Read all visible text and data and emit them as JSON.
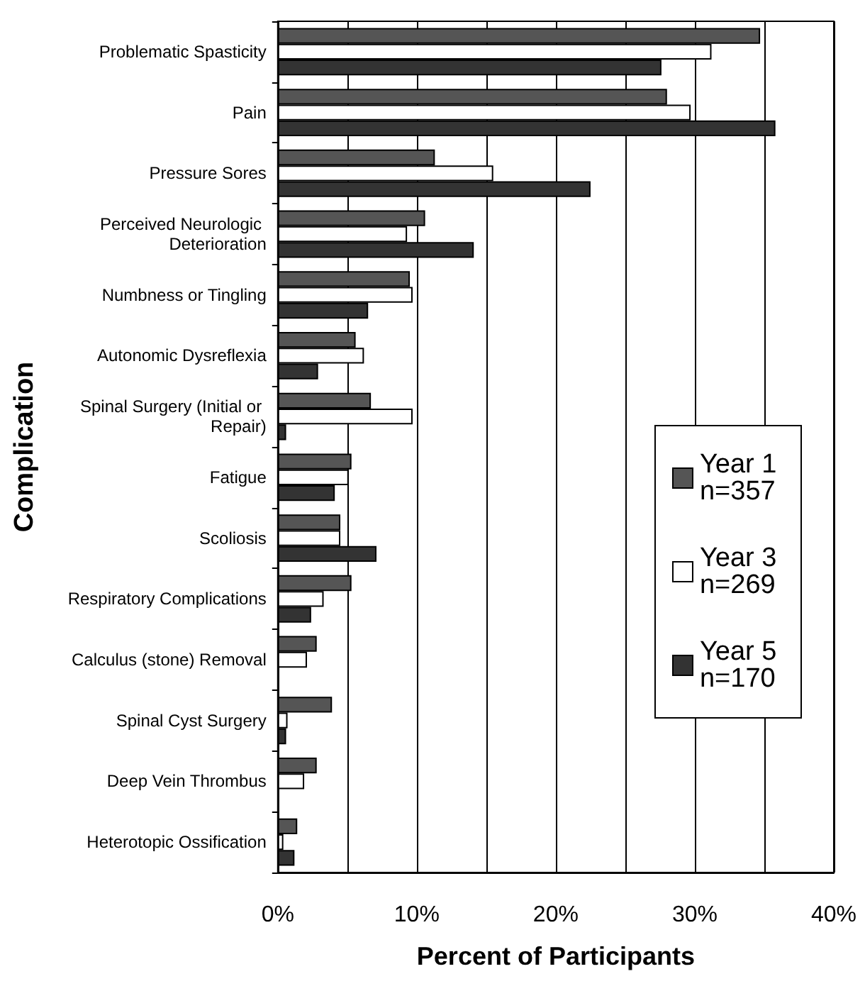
{
  "chart_data": {
    "type": "bar",
    "orientation": "horizontal",
    "xlabel": "Percent of Participants",
    "ylabel": "Complication",
    "categories": [
      "Problematic Spasticity",
      "Pain",
      "Pressure Sores",
      "Perceived Neurologic Deterioration",
      "Numbness or Tingling",
      "Autonomic Dysreflexia",
      "Spinal Surgery (Initial or Repair)",
      "Fatigue",
      "Scoliosis",
      "Respiratory Complications",
      "Calculus (stone) Removal",
      "Spinal Cyst Surgery",
      "Deep Vein Thrombus",
      "Heterotopic Ossification"
    ],
    "series": [
      {
        "name": "Year 1 n=357",
        "color": "#555555",
        "values": [
          34.7,
          28.0,
          11.3,
          10.6,
          9.5,
          5.6,
          6.7,
          5.3,
          4.5,
          5.3,
          2.8,
          3.9,
          2.8,
          1.4
        ]
      },
      {
        "name": "Year 3 n=269",
        "color": "#ffffff",
        "values": [
          31.2,
          29.7,
          15.5,
          9.3,
          9.7,
          6.2,
          9.7,
          5.1,
          4.5,
          3.3,
          2.1,
          0.7,
          1.9,
          0.4
        ]
      },
      {
        "name": "Year 5 n=170",
        "color": "#333333",
        "values": [
          27.6,
          35.8,
          22.5,
          14.1,
          6.5,
          2.9,
          0.6,
          4.1,
          7.1,
          2.4,
          0,
          0.6,
          0,
          1.2
        ]
      }
    ],
    "xlim": [
      0,
      40
    ],
    "xticks": [
      {
        "value": 0,
        "label": "0%"
      },
      {
        "value": 5,
        "label": null
      },
      {
        "value": 10,
        "label": "10%"
      },
      {
        "value": 15,
        "label": null
      },
      {
        "value": 20,
        "label": "20%"
      },
      {
        "value": 25,
        "label": null
      },
      {
        "value": 30,
        "label": "30%"
      },
      {
        "value": 35,
        "label": null
      },
      {
        "value": 40,
        "label": "40%"
      }
    ],
    "grid": "x",
    "legend": "right"
  }
}
